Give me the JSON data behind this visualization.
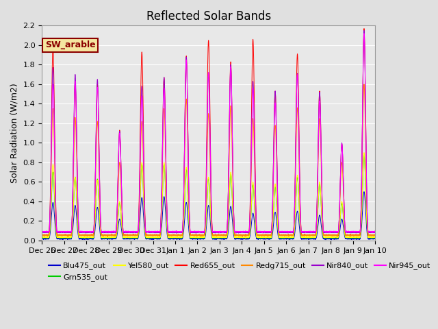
{
  "title": "Reflected Solar Bands",
  "ylabel": "Solar Radiation (W/m2)",
  "ylim": [
    0,
    2.2
  ],
  "yticks": [
    0.0,
    0.2,
    0.4,
    0.6,
    0.8,
    1.0,
    1.2,
    1.4,
    1.6,
    1.8,
    2.0,
    2.2
  ],
  "background_color": "#e0e0e0",
  "axes_bg": "#e8e8e8",
  "grid_color": "#ffffff",
  "annotation_text": "SW_arable",
  "annotation_bg": "#f5e6a0",
  "annotation_fg": "#8b0000",
  "series": [
    {
      "name": "Blu475_out",
      "color": "#0000cc",
      "km": "blu"
    },
    {
      "name": "Grn535_out",
      "color": "#00cc00",
      "km": "grn"
    },
    {
      "name": "Yel580_out",
      "color": "#ffff00",
      "km": "yel"
    },
    {
      "name": "Red655_out",
      "color": "#ff0000",
      "km": "red"
    },
    {
      "name": "Redg715_out",
      "color": "#ff8800",
      "km": "redg"
    },
    {
      "name": "Nir840_out",
      "color": "#9900cc",
      "km": "nir840"
    },
    {
      "name": "Nir945_out",
      "color": "#ff00ff",
      "km": "nir945"
    }
  ],
  "xtick_labels": [
    "Dec 26",
    "Dec 27",
    "Dec 28",
    "Dec 29",
    "Dec 30",
    "Dec 31",
    "Jan 1",
    "Jan 2",
    "Jan 3",
    "Jan 4",
    "Jan 5",
    "Jan 6",
    "Jan 7",
    "Jan 8",
    "Jan 9",
    "Jan 10"
  ],
  "xtick_positions": [
    0,
    1,
    2,
    3,
    4,
    5,
    6,
    7,
    8,
    9,
    10,
    11,
    12,
    13,
    14,
    15
  ],
  "day_peaks": [
    {
      "t_noon": 0.5,
      "red": 1.98,
      "nir840": 1.77,
      "nir945": 1.6,
      "redg": 1.35,
      "yel": 0.78,
      "grn": 0.7,
      "blu": 0.39
    },
    {
      "t_noon": 1.5,
      "red": 1.62,
      "nir840": 1.7,
      "nir945": 1.63,
      "redg": 1.26,
      "yel": 0.65,
      "grn": 0.65,
      "blu": 0.36
    },
    {
      "t_noon": 2.5,
      "red": 1.6,
      "nir840": 1.65,
      "nir945": 1.57,
      "redg": 1.22,
      "yel": 0.62,
      "grn": 0.63,
      "blu": 0.34
    },
    {
      "t_noon": 3.5,
      "red": 1.13,
      "nir840": 1.12,
      "nir945": 1.1,
      "redg": 0.8,
      "yel": 0.4,
      "grn": 0.39,
      "blu": 0.22
    },
    {
      "t_noon": 4.5,
      "red": 1.93,
      "nir840": 1.58,
      "nir945": 1.48,
      "redg": 1.22,
      "yel": 0.8,
      "grn": 0.78,
      "blu": 0.44
    },
    {
      "t_noon": 5.5,
      "red": 1.67,
      "nir840": 1.67,
      "nir945": 1.56,
      "redg": 1.35,
      "yel": 0.8,
      "grn": 0.78,
      "blu": 0.45
    },
    {
      "t_noon": 6.5,
      "red": 1.89,
      "nir840": 1.88,
      "nir945": 1.85,
      "redg": 1.45,
      "yel": 0.75,
      "grn": 0.73,
      "blu": 0.39
    },
    {
      "t_noon": 7.5,
      "red": 2.05,
      "nir840": 1.72,
      "nir945": 1.72,
      "redg": 1.3,
      "yel": 0.65,
      "grn": 0.64,
      "blu": 0.36
    },
    {
      "t_noon": 8.5,
      "red": 1.83,
      "nir840": 1.8,
      "nir945": 1.78,
      "redg": 1.38,
      "yel": 0.7,
      "grn": 0.68,
      "blu": 0.35
    },
    {
      "t_noon": 9.5,
      "red": 2.06,
      "nir840": 1.63,
      "nir945": 1.56,
      "redg": 1.25,
      "yel": 0.6,
      "grn": 0.57,
      "blu": 0.28
    },
    {
      "t_noon": 10.5,
      "red": 1.53,
      "nir840": 1.53,
      "nir945": 1.41,
      "redg": 1.18,
      "yel": 0.58,
      "grn": 0.55,
      "blu": 0.29
    },
    {
      "t_noon": 11.5,
      "red": 1.91,
      "nir840": 1.71,
      "nir945": 1.7,
      "redg": 1.36,
      "yel": 0.67,
      "grn": 0.65,
      "blu": 0.3
    },
    {
      "t_noon": 12.5,
      "red": 1.53,
      "nir840": 1.52,
      "nir945": 1.43,
      "redg": 1.25,
      "yel": 0.6,
      "grn": 0.58,
      "blu": 0.26
    },
    {
      "t_noon": 13.5,
      "red": 0.99,
      "nir840": 1.0,
      "nir945": 0.99,
      "redg": 0.8,
      "yel": 0.4,
      "grn": 0.38,
      "blu": 0.22
    },
    {
      "t_noon": 14.5,
      "red": 2.17,
      "nir840": 2.15,
      "nir945": 2.12,
      "redg": 1.6,
      "yel": 0.9,
      "grn": 0.88,
      "blu": 0.5
    }
  ],
  "night_base": {
    "red": 0.055,
    "nir840": 0.085,
    "nir945": 0.09,
    "redg": 0.055,
    "yel": 0.035,
    "grn": 0.03,
    "blu": 0.018
  },
  "sigma": 0.07,
  "title_fontsize": 12,
  "legend_fontsize": 8,
  "tick_fontsize": 8,
  "ylabel_fontsize": 9
}
